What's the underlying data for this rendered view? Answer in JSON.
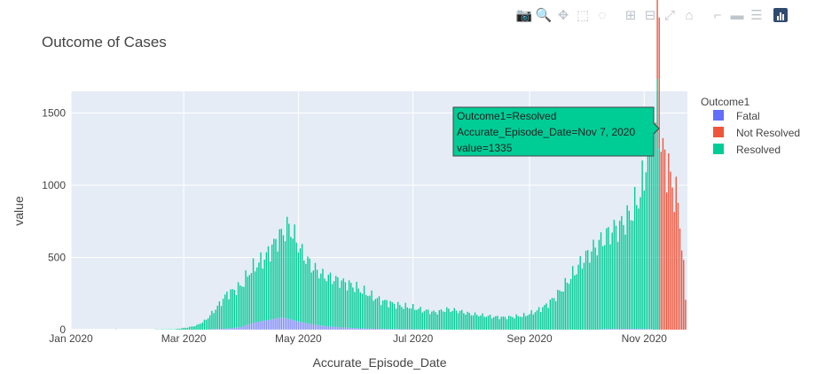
{
  "modebar": {
    "buttons": [
      {
        "icon": "camera-icon",
        "glyph": "📷"
      },
      {
        "icon": "zoom-icon",
        "glyph": "🔍"
      },
      {
        "icon": "pan-icon",
        "glyph": "✥"
      },
      {
        "icon": "box-select-icon",
        "glyph": "⬚"
      },
      {
        "icon": "lasso-select-icon",
        "glyph": "◌"
      },
      {
        "icon": "zoom-in-icon",
        "glyph": "⊞"
      },
      {
        "icon": "zoom-out-icon",
        "glyph": "⊟"
      },
      {
        "icon": "autoscale-icon",
        "glyph": "⤢"
      },
      {
        "icon": "reset-axes-icon",
        "glyph": "⌂"
      },
      {
        "icon": "spike-lines-icon",
        "glyph": "⌐"
      },
      {
        "icon": "hover-closest-icon",
        "glyph": "▬"
      },
      {
        "icon": "hover-compare-icon",
        "glyph": "☰"
      }
    ],
    "logo_icon": "plotly-logo-icon"
  },
  "chart_data": {
    "type": "bar",
    "title": "Outcome of Cases",
    "xlabel": "Accurate_Episode_Date",
    "ylabel": "value",
    "x_ticks": [
      "Jan 2020",
      "Mar 2020",
      "May 2020",
      "Jul 2020",
      "Sep 2020",
      "Nov 2020"
    ],
    "x_tick_dates": [
      "2020-01-01",
      "2020-03-01",
      "2020-05-01",
      "2020-07-01",
      "2020-09-01",
      "2020-11-01"
    ],
    "x_range": [
      "2020-01-01",
      "2020-11-24"
    ],
    "y_ticks": [
      0,
      500,
      1000,
      1500
    ],
    "ylim": [
      0,
      1650
    ],
    "grid": true,
    "barmode": "stack",
    "legend_title": "Outcome1",
    "legend_position": "right",
    "colors": {
      "Fatal": "#636efa",
      "Not Resolved": "#ef553b",
      "Resolved": "#00cc96",
      "plot_bg": "#e5ecf6"
    },
    "series": [
      {
        "name": "Fatal",
        "values": [
          [
            "2020-03-15",
            3
          ],
          [
            "2020-03-25",
            8
          ],
          [
            "2020-04-01",
            20
          ],
          [
            "2020-04-05",
            40
          ],
          [
            "2020-04-10",
            55
          ],
          [
            "2020-04-14",
            65
          ],
          [
            "2020-04-18",
            75
          ],
          [
            "2020-04-22",
            85
          ],
          [
            "2020-04-26",
            75
          ],
          [
            "2020-04-30",
            60
          ],
          [
            "2020-05-05",
            45
          ],
          [
            "2020-05-10",
            35
          ],
          [
            "2020-05-15",
            25
          ],
          [
            "2020-05-25",
            15
          ],
          [
            "2020-06-05",
            8
          ],
          [
            "2020-06-20",
            4
          ],
          [
            "2020-07-10",
            2
          ],
          [
            "2020-08-15",
            1
          ],
          [
            "2020-09-15",
            2
          ],
          [
            "2020-10-10",
            4
          ],
          [
            "2020-10-25",
            6
          ],
          [
            "2020-11-05",
            4
          ]
        ]
      },
      {
        "name": "Resolved",
        "values": [
          [
            "2020-01-25",
            2
          ],
          [
            "2020-02-15",
            2
          ],
          [
            "2020-02-25",
            3
          ],
          [
            "2020-03-03",
            15
          ],
          [
            "2020-03-08",
            30
          ],
          [
            "2020-03-12",
            60
          ],
          [
            "2020-03-16",
            110
          ],
          [
            "2020-03-20",
            170
          ],
          [
            "2020-03-24",
            240
          ],
          [
            "2020-03-28",
            260
          ],
          [
            "2020-04-01",
            290
          ],
          [
            "2020-04-05",
            360
          ],
          [
            "2020-04-09",
            400
          ],
          [
            "2020-04-13",
            430
          ],
          [
            "2020-04-17",
            500
          ],
          [
            "2020-04-20",
            550
          ],
          [
            "2020-04-23",
            590
          ],
          [
            "2020-04-26",
            640
          ],
          [
            "2020-04-29",
            580
          ],
          [
            "2020-05-03",
            480
          ],
          [
            "2020-05-08",
            400
          ],
          [
            "2020-05-14",
            350
          ],
          [
            "2020-05-20",
            330
          ],
          [
            "2020-05-26",
            310
          ],
          [
            "2020-06-01",
            280
          ],
          [
            "2020-06-07",
            240
          ],
          [
            "2020-06-13",
            200
          ],
          [
            "2020-06-19",
            180
          ],
          [
            "2020-06-25",
            160
          ],
          [
            "2020-07-01",
            150
          ],
          [
            "2020-07-07",
            130
          ],
          [
            "2020-07-13",
            120
          ],
          [
            "2020-07-19",
            140
          ],
          [
            "2020-07-25",
            130
          ],
          [
            "2020-07-31",
            110
          ],
          [
            "2020-08-06",
            100
          ],
          [
            "2020-08-12",
            90
          ],
          [
            "2020-08-18",
            85
          ],
          [
            "2020-08-24",
            90
          ],
          [
            "2020-08-30",
            100
          ],
          [
            "2020-09-05",
            130
          ],
          [
            "2020-09-10",
            170
          ],
          [
            "2020-09-15",
            230
          ],
          [
            "2020-09-20",
            310
          ],
          [
            "2020-09-25",
            400
          ],
          [
            "2020-09-30",
            490
          ],
          [
            "2020-10-05",
            560
          ],
          [
            "2020-10-10",
            620
          ],
          [
            "2020-10-15",
            680
          ],
          [
            "2020-10-20",
            720
          ],
          [
            "2020-10-25",
            800
          ],
          [
            "2020-10-29",
            900
          ],
          [
            "2020-11-01",
            1050
          ],
          [
            "2020-11-03",
            1250
          ],
          [
            "2020-11-05",
            1400
          ],
          [
            "2020-11-07",
            1335
          ],
          [
            "2020-11-08",
            1580
          ],
          [
            "2020-11-09",
            1520
          ]
        ]
      },
      {
        "name": "Not Resolved",
        "values": [
          [
            "2020-11-03",
            5
          ],
          [
            "2020-11-07",
            30
          ],
          [
            "2020-11-09",
            1100
          ],
          [
            "2020-11-11",
            1250
          ],
          [
            "2020-11-13",
            1150
          ],
          [
            "2020-11-15",
            1050
          ],
          [
            "2020-11-17",
            950
          ],
          [
            "2020-11-19",
            880
          ],
          [
            "2020-11-21",
            600
          ],
          [
            "2020-11-23",
            220
          ]
        ]
      }
    ],
    "hover": {
      "line1": "Outcome1=Resolved",
      "line2": "Accurate_Episode_Date=Nov 7, 2020",
      "line3": "value=1335",
      "series": "Resolved",
      "x": "2020-11-07",
      "y": 1335
    }
  }
}
